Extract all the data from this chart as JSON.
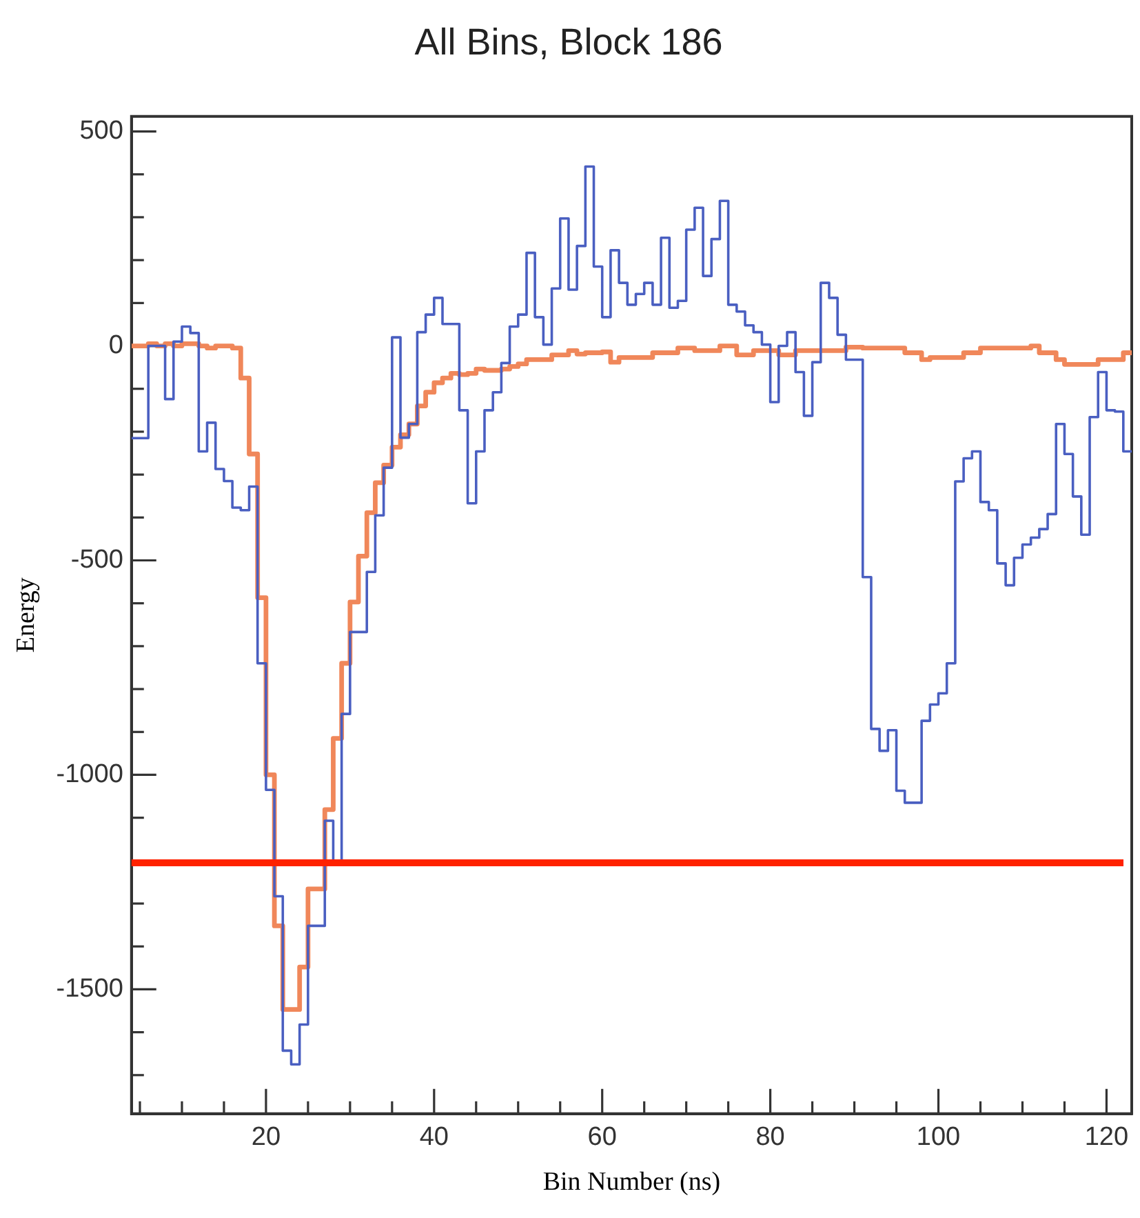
{
  "chart_data": {
    "type": "step",
    "title": "All Bins, Block 186",
    "xlabel": "Bin Number (ns)",
    "ylabel": "Energy",
    "xlim": [
      4,
      123
    ],
    "ylim": [
      -1790,
      535
    ],
    "xticks": [
      {
        "value": 5,
        "label": null
      },
      {
        "value": 10,
        "label": null
      },
      {
        "value": 15,
        "label": null
      },
      20,
      {
        "value": 25,
        "label": null
      },
      {
        "value": 30,
        "label": null
      },
      {
        "value": 35,
        "label": null
      },
      40,
      {
        "value": 45,
        "label": null
      },
      {
        "value": 50,
        "label": null
      },
      {
        "value": 55,
        "label": null
      },
      60,
      {
        "value": 65,
        "label": null
      },
      {
        "value": 70,
        "label": null
      },
      {
        "value": 75,
        "label": null
      },
      80,
      {
        "value": 85,
        "label": null
      },
      {
        "value": 90,
        "label": null
      },
      {
        "value": 95,
        "label": null
      },
      100,
      {
        "value": 105,
        "label": null
      },
      {
        "value": 110,
        "label": null
      },
      {
        "value": 115,
        "label": null
      },
      120
    ],
    "yticks": [
      {
        "value": -1700,
        "label": null
      },
      {
        "value": -1600,
        "label": null
      },
      -1500,
      {
        "value": -1400,
        "label": null
      },
      {
        "value": -1300,
        "label": null
      },
      {
        "value": -1200,
        "label": null
      },
      {
        "value": -1100,
        "label": null
      },
      -1000,
      {
        "value": -900,
        "label": null
      },
      {
        "value": -800,
        "label": null
      },
      {
        "value": -700,
        "label": null
      },
      {
        "value": -600,
        "label": null
      },
      -500,
      {
        "value": -400,
        "label": null
      },
      {
        "value": -300,
        "label": null
      },
      {
        "value": -200,
        "label": null
      },
      {
        "value": -100,
        "label": null
      },
      0,
      {
        "value": 100,
        "label": null
      },
      {
        "value": 200,
        "label": null
      },
      {
        "value": 300,
        "label": null
      },
      {
        "value": 400,
        "label": null
      },
      500
    ],
    "x": [
      4,
      5,
      6,
      7,
      8,
      9,
      10,
      11,
      12,
      13,
      14,
      15,
      16,
      17,
      18,
      19,
      20,
      21,
      22,
      23,
      24,
      25,
      26,
      27,
      28,
      29,
      30,
      31,
      32,
      33,
      34,
      35,
      36,
      37,
      38,
      39,
      40,
      41,
      42,
      43,
      44,
      45,
      46,
      47,
      48,
      49,
      50,
      51,
      52,
      53,
      54,
      55,
      56,
      57,
      58,
      59,
      60,
      61,
      62,
      63,
      64,
      65,
      66,
      67,
      68,
      69,
      70,
      71,
      72,
      73,
      74,
      75,
      76,
      77,
      78,
      79,
      80,
      81,
      82,
      83,
      84,
      85,
      86,
      87,
      88,
      89,
      90,
      91,
      92,
      93,
      94,
      95,
      96,
      97,
      98,
      99,
      100,
      101,
      102,
      103,
      104,
      105,
      106,
      107,
      108,
      109,
      110,
      111,
      112,
      113,
      114,
      115,
      116,
      117,
      118,
      119,
      120,
      121,
      122,
      123
    ],
    "series": [
      {
        "color": "#4a5fc1",
        "values": [
          -215,
          -215,
          0,
          0,
          -124,
          10,
          45,
          30,
          -246,
          -179,
          -287,
          -315,
          -377,
          -383,
          -328,
          -740,
          -1035,
          -1283,
          -1643,
          -1675,
          -1582,
          -1352,
          -1352,
          -1107,
          -1203,
          -858,
          -667,
          -667,
          -527,
          -395,
          -284,
          20,
          -214,
          -182,
          32,
          73,
          112,
          51,
          51,
          -150,
          -367,
          -246,
          -150,
          -108,
          -40,
          45,
          73,
          217,
          67,
          3,
          134,
          297,
          131,
          233,
          418,
          185,
          67,
          223,
          147,
          96,
          121,
          147,
          96,
          252,
          89,
          105,
          271,
          322,
          163,
          249,
          338,
          96,
          80,
          48,
          32,
          3,
          -131,
          0,
          32,
          -61,
          -163,
          -38,
          147,
          112,
          26,
          -32,
          -32,
          -539,
          -893,
          -944,
          -896,
          -1037,
          -1065,
          -1065,
          -874,
          -836,
          -810,
          -740,
          -316,
          -262,
          -246,
          -364,
          -383,
          -507,
          -558,
          -494,
          -463,
          -447,
          -427,
          -392,
          -182,
          -252,
          -351,
          -440,
          -166,
          -61,
          -150,
          -153,
          -246,
          -246
        ]
      },
      {
        "color": "#f0875a",
        "values": [
          0,
          0,
          5,
          0,
          5,
          0,
          5,
          5,
          0,
          -5,
          0,
          0,
          -5,
          -75,
          -252,
          -587,
          -1000,
          -1352,
          -1547,
          -1547,
          -1448,
          -1266,
          -1266,
          -1081,
          -915,
          -740,
          -597,
          -490,
          -389,
          -319,
          -278,
          -236,
          -207,
          -182,
          -140,
          -108,
          -86,
          -75,
          -64,
          -67,
          -64,
          -54,
          -57,
          -57,
          -54,
          -48,
          -42,
          -32,
          -32,
          -32,
          -21,
          -21,
          -11,
          -19,
          -16,
          -16,
          -14,
          -38,
          -27,
          -27,
          -27,
          -27,
          -16,
          -16,
          -16,
          -5,
          -5,
          -11,
          -11,
          -11,
          0,
          0,
          -21,
          -21,
          -11,
          -11,
          -11,
          -21,
          -21,
          -11,
          -11,
          -11,
          -11,
          -11,
          -11,
          -3,
          -3,
          -5,
          -5,
          -5,
          -5,
          -5,
          -16,
          -16,
          -32,
          -27,
          -27,
          -27,
          -27,
          -16,
          -16,
          -5,
          -5,
          -5,
          -5,
          -5,
          -5,
          0,
          -16,
          -16,
          -32,
          -43,
          -43,
          -43,
          -43,
          -32,
          -32,
          -32,
          -16,
          -16
        ]
      }
    ],
    "ref_lines": [
      {
        "axis": "y",
        "value": -1205,
        "color": "#ff2200"
      }
    ],
    "grid": false,
    "legend": false
  }
}
